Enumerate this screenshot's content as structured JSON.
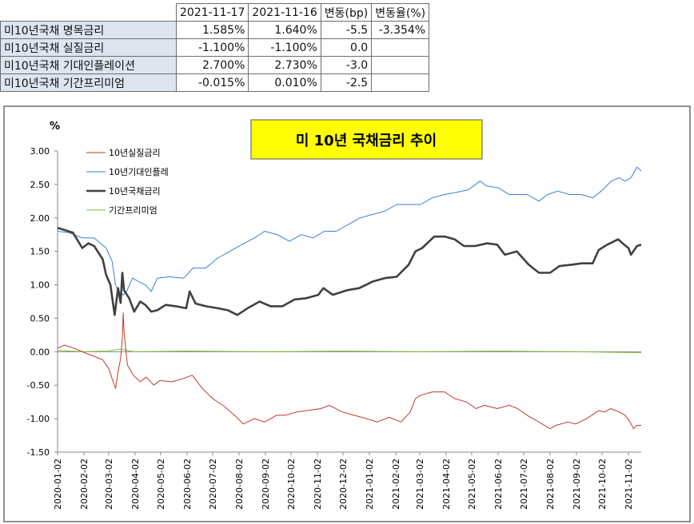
{
  "table": {
    "headers": [
      "2021-11-17",
      "2021-11-16",
      "변동(bp)",
      "변동율(%)"
    ],
    "rows": [
      {
        "label": "미10년국채 명목금리",
        "cells": [
          "1.585%",
          "1.640%",
          "-5.5",
          "-3.354%"
        ]
      },
      {
        "label": "미10년국채 실질금리",
        "cells": [
          "-1.100%",
          "-1.100%",
          "0.0",
          ""
        ]
      },
      {
        "label": "미10년국채 기대인플레이션",
        "cells": [
          "2.700%",
          "2.730%",
          "-3.0",
          ""
        ]
      },
      {
        "label": "미10년국채 기간프리미엄",
        "cells": [
          "-0.015%",
          "0.010%",
          "-2.5",
          ""
        ]
      }
    ]
  },
  "chart_data": {
    "type": "line",
    "title": "미 10년 국채금리 추이",
    "ylabel": "%",
    "ylim": [
      -1.5,
      3.0
    ],
    "yticks": [
      "3.00",
      "2.50",
      "2.00",
      "1.50",
      "1.00",
      "0.50",
      "0.00",
      "-0.50",
      "-1.00",
      "-1.50"
    ],
    "x_range": [
      "2020-01-02",
      "2021-11-17"
    ],
    "xticks": [
      "2020-01-02",
      "2020-02-02",
      "2020-03-02",
      "2020-04-02",
      "2020-05-02",
      "2020-06-02",
      "2020-07-02",
      "2020-08-02",
      "2020-09-02",
      "2020-10-02",
      "2020-11-02",
      "2020-12-02",
      "2021-01-02",
      "2021-02-02",
      "2021-03-02",
      "2021-04-02",
      "2021-05-02",
      "2021-06-02",
      "2021-07-02",
      "2021-08-02",
      "2021-09-02",
      "2021-10-02",
      "2021-11-02"
    ],
    "grid": false,
    "legend_position": "top-left",
    "series": [
      {
        "name": "10년실질금리",
        "color": "#c0392b",
        "stroke": 1,
        "points": [
          [
            "2020-01-02",
            0.05
          ],
          [
            "2020-01-10",
            0.1
          ],
          [
            "2020-01-20",
            0.06
          ],
          [
            "2020-01-31",
            0.0
          ],
          [
            "2020-02-10",
            -0.05
          ],
          [
            "2020-02-24",
            -0.12
          ],
          [
            "2020-03-02",
            -0.25
          ],
          [
            "2020-03-06",
            -0.4
          ],
          [
            "2020-03-10",
            -0.55
          ],
          [
            "2020-03-13",
            -0.3
          ],
          [
            "2020-03-16",
            -0.1
          ],
          [
            "2020-03-18",
            0.2
          ],
          [
            "2020-03-19",
            0.58
          ],
          [
            "2020-03-20",
            0.3
          ],
          [
            "2020-03-24",
            -0.2
          ],
          [
            "2020-03-31",
            -0.35
          ],
          [
            "2020-04-08",
            -0.45
          ],
          [
            "2020-04-15",
            -0.38
          ],
          [
            "2020-04-24",
            -0.5
          ],
          [
            "2020-05-01",
            -0.43
          ],
          [
            "2020-05-15",
            -0.45
          ],
          [
            "2020-05-29",
            -0.4
          ],
          [
            "2020-06-08",
            -0.35
          ],
          [
            "2020-06-20",
            -0.55
          ],
          [
            "2020-07-02",
            -0.7
          ],
          [
            "2020-07-16",
            -0.82
          ],
          [
            "2020-08-01",
            -1.0
          ],
          [
            "2020-08-07",
            -1.08
          ],
          [
            "2020-08-20",
            -1.0
          ],
          [
            "2020-09-01",
            -1.05
          ],
          [
            "2020-09-15",
            -0.95
          ],
          [
            "2020-09-25",
            -0.95
          ],
          [
            "2020-10-09",
            -0.9
          ],
          [
            "2020-10-20",
            -0.88
          ],
          [
            "2020-11-06",
            -0.85
          ],
          [
            "2020-11-16",
            -0.8
          ],
          [
            "2020-12-01",
            -0.9
          ],
          [
            "2020-12-15",
            -0.95
          ],
          [
            "2021-01-04",
            -1.02
          ],
          [
            "2021-01-11",
            -1.05
          ],
          [
            "2021-01-25",
            -0.98
          ],
          [
            "2021-02-08",
            -1.05
          ],
          [
            "2021-02-19",
            -0.9
          ],
          [
            "2021-02-25",
            -0.7
          ],
          [
            "2021-03-03",
            -0.65
          ],
          [
            "2021-03-17",
            -0.6
          ],
          [
            "2021-03-31",
            -0.6
          ],
          [
            "2021-04-12",
            -0.7
          ],
          [
            "2021-04-26",
            -0.75
          ],
          [
            "2021-05-07",
            -0.85
          ],
          [
            "2021-05-17",
            -0.8
          ],
          [
            "2021-06-01",
            -0.85
          ],
          [
            "2021-06-15",
            -0.8
          ],
          [
            "2021-06-25",
            -0.85
          ],
          [
            "2021-07-06",
            -0.95
          ],
          [
            "2021-07-20",
            -1.05
          ],
          [
            "2021-08-02",
            -1.15
          ],
          [
            "2021-08-09",
            -1.1
          ],
          [
            "2021-08-23",
            -1.05
          ],
          [
            "2021-09-01",
            -1.08
          ],
          [
            "2021-09-14",
            -1.0
          ],
          [
            "2021-09-28",
            -0.88
          ],
          [
            "2021-10-05",
            -0.9
          ],
          [
            "2021-10-12",
            -0.85
          ],
          [
            "2021-10-22",
            -0.9
          ],
          [
            "2021-10-29",
            -0.95
          ],
          [
            "2021-11-04",
            -1.05
          ],
          [
            "2021-11-08",
            -1.15
          ],
          [
            "2021-11-12",
            -1.1
          ],
          [
            "2021-11-17",
            -1.1
          ]
        ]
      },
      {
        "name": "10년기대인플레",
        "color": "#3b7fd0",
        "stroke": 1,
        "points": [
          [
            "2020-01-02",
            1.8
          ],
          [
            "2020-01-15",
            1.78
          ],
          [
            "2020-01-31",
            1.7
          ],
          [
            "2020-02-14",
            1.7
          ],
          [
            "2020-02-28",
            1.55
          ],
          [
            "2020-03-06",
            1.35
          ],
          [
            "2020-03-10",
            1.0
          ],
          [
            "2020-03-13",
            0.9
          ],
          [
            "2020-03-19",
            0.85
          ],
          [
            "2020-03-23",
            0.9
          ],
          [
            "2020-03-30",
            1.1
          ],
          [
            "2020-04-06",
            1.05
          ],
          [
            "2020-04-14",
            1.0
          ],
          [
            "2020-04-21",
            0.9
          ],
          [
            "2020-04-28",
            1.1
          ],
          [
            "2020-05-12",
            1.12
          ],
          [
            "2020-05-29",
            1.1
          ],
          [
            "2020-06-09",
            1.25
          ],
          [
            "2020-06-24",
            1.25
          ],
          [
            "2020-07-08",
            1.4
          ],
          [
            "2020-07-22",
            1.5
          ],
          [
            "2020-08-05",
            1.6
          ],
          [
            "2020-08-20",
            1.7
          ],
          [
            "2020-09-01",
            1.8
          ],
          [
            "2020-09-16",
            1.75
          ],
          [
            "2020-09-30",
            1.65
          ],
          [
            "2020-10-14",
            1.75
          ],
          [
            "2020-10-28",
            1.7
          ],
          [
            "2020-11-10",
            1.8
          ],
          [
            "2020-11-24",
            1.8
          ],
          [
            "2020-12-08",
            1.9
          ],
          [
            "2020-12-22",
            2.0
          ],
          [
            "2021-01-05",
            2.05
          ],
          [
            "2021-01-20",
            2.1
          ],
          [
            "2021-02-03",
            2.2
          ],
          [
            "2021-02-17",
            2.2
          ],
          [
            "2021-03-03",
            2.2
          ],
          [
            "2021-03-17",
            2.3
          ],
          [
            "2021-03-31",
            2.35
          ],
          [
            "2021-04-14",
            2.38
          ],
          [
            "2021-04-28",
            2.42
          ],
          [
            "2021-05-12",
            2.55
          ],
          [
            "2021-05-19",
            2.48
          ],
          [
            "2021-06-02",
            2.45
          ],
          [
            "2021-06-15",
            2.35
          ],
          [
            "2021-06-25",
            2.35
          ],
          [
            "2021-07-06",
            2.35
          ],
          [
            "2021-07-20",
            2.25
          ],
          [
            "2021-07-30",
            2.35
          ],
          [
            "2021-08-11",
            2.4
          ],
          [
            "2021-08-25",
            2.35
          ],
          [
            "2021-09-08",
            2.35
          ],
          [
            "2021-09-21",
            2.3
          ],
          [
            "2021-10-01",
            2.4
          ],
          [
            "2021-10-13",
            2.55
          ],
          [
            "2021-10-22",
            2.6
          ],
          [
            "2021-10-29",
            2.55
          ],
          [
            "2021-11-05",
            2.6
          ],
          [
            "2021-11-12",
            2.76
          ],
          [
            "2021-11-17",
            2.7
          ]
        ]
      },
      {
        "name": "10년국채금리",
        "color": "#404040",
        "stroke": 2.6,
        "points": [
          [
            "2020-01-02",
            1.85
          ],
          [
            "2020-01-10",
            1.82
          ],
          [
            "2020-01-20",
            1.78
          ],
          [
            "2020-01-31",
            1.55
          ],
          [
            "2020-02-07",
            1.62
          ],
          [
            "2020-02-14",
            1.58
          ],
          [
            "2020-02-24",
            1.38
          ],
          [
            "2020-02-28",
            1.15
          ],
          [
            "2020-03-04",
            1.0
          ],
          [
            "2020-03-09",
            0.55
          ],
          [
            "2020-03-13",
            0.95
          ],
          [
            "2020-03-16",
            0.73
          ],
          [
            "2020-03-18",
            1.18
          ],
          [
            "2020-03-20",
            0.92
          ],
          [
            "2020-03-26",
            0.8
          ],
          [
            "2020-04-01",
            0.6
          ],
          [
            "2020-04-08",
            0.75
          ],
          [
            "2020-04-14",
            0.7
          ],
          [
            "2020-04-21",
            0.6
          ],
          [
            "2020-04-28",
            0.62
          ],
          [
            "2020-05-08",
            0.7
          ],
          [
            "2020-05-20",
            0.68
          ],
          [
            "2020-06-01",
            0.65
          ],
          [
            "2020-06-05",
            0.9
          ],
          [
            "2020-06-12",
            0.72
          ],
          [
            "2020-06-24",
            0.68
          ],
          [
            "2020-07-08",
            0.65
          ],
          [
            "2020-07-20",
            0.62
          ],
          [
            "2020-07-31",
            0.55
          ],
          [
            "2020-08-12",
            0.65
          ],
          [
            "2020-08-26",
            0.75
          ],
          [
            "2020-09-08",
            0.68
          ],
          [
            "2020-09-22",
            0.68
          ],
          [
            "2020-10-06",
            0.78
          ],
          [
            "2020-10-20",
            0.8
          ],
          [
            "2020-11-03",
            0.85
          ],
          [
            "2020-11-09",
            0.95
          ],
          [
            "2020-11-20",
            0.85
          ],
          [
            "2020-12-07",
            0.92
          ],
          [
            "2020-12-21",
            0.95
          ],
          [
            "2021-01-06",
            1.05
          ],
          [
            "2021-01-20",
            1.1
          ],
          [
            "2021-02-03",
            1.12
          ],
          [
            "2021-02-17",
            1.3
          ],
          [
            "2021-02-25",
            1.5
          ],
          [
            "2021-03-05",
            1.55
          ],
          [
            "2021-03-19",
            1.72
          ],
          [
            "2021-04-01",
            1.72
          ],
          [
            "2021-04-12",
            1.68
          ],
          [
            "2021-04-23",
            1.58
          ],
          [
            "2021-05-06",
            1.58
          ],
          [
            "2021-05-20",
            1.62
          ],
          [
            "2021-06-01",
            1.6
          ],
          [
            "2021-06-10",
            1.45
          ],
          [
            "2021-06-24",
            1.5
          ],
          [
            "2021-07-08",
            1.3
          ],
          [
            "2021-07-20",
            1.18
          ],
          [
            "2021-08-02",
            1.18
          ],
          [
            "2021-08-13",
            1.28
          ],
          [
            "2021-08-27",
            1.3
          ],
          [
            "2021-09-08",
            1.32
          ],
          [
            "2021-09-21",
            1.32
          ],
          [
            "2021-09-28",
            1.52
          ],
          [
            "2021-10-08",
            1.6
          ],
          [
            "2021-10-21",
            1.68
          ],
          [
            "2021-10-26",
            1.62
          ],
          [
            "2021-11-02",
            1.55
          ],
          [
            "2021-11-05",
            1.45
          ],
          [
            "2021-11-12",
            1.58
          ],
          [
            "2021-11-17",
            1.6
          ]
        ]
      },
      {
        "name": "기간프리미엄",
        "color": "#7dc242",
        "stroke": 1,
        "points": [
          [
            "2020-01-02",
            0.02
          ],
          [
            "2020-02-01",
            0.0
          ],
          [
            "2020-03-01",
            0.01
          ],
          [
            "2020-03-15",
            0.04
          ],
          [
            "2020-04-01",
            0.0
          ],
          [
            "2020-06-01",
            0.01
          ],
          [
            "2020-09-01",
            0.0
          ],
          [
            "2020-12-01",
            0.01
          ],
          [
            "2021-03-01",
            0.0
          ],
          [
            "2021-06-01",
            0.01
          ],
          [
            "2021-09-01",
            0.0
          ],
          [
            "2021-11-17",
            -0.015
          ]
        ]
      }
    ]
  }
}
